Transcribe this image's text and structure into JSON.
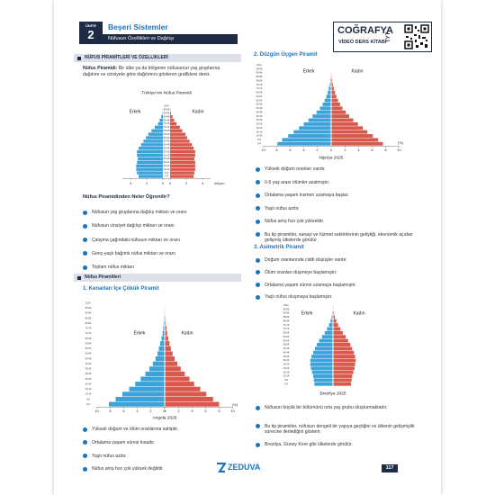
{
  "header": {
    "unit_label": "ÜNİTE",
    "unit_number": "2",
    "title": "Beşeri Sistemler",
    "subtitle": "Nüfusun Özellikleri ve Dağılışı",
    "book": {
      "subject": "COĞRAFYA",
      "level": "TYT",
      "name": "VİDEO DERS KİTABI"
    }
  },
  "left": {
    "section1_title": "NÜFUS PİRAMİTLERİ VE ÖZELLİKLERİ",
    "definition_term": "Nüfus Piramidi:",
    "definition_text": "Bir ülke ya da bölgenin nüfusunun yaş gruplarına dağılımı ve cinsiyete göre dağılımını gösteren grafiklere denir.",
    "turkey": {
      "type": "pyramid",
      "title": "Türkiye'nin Nüfus Piramidi",
      "unit_label": "milyon",
      "categories": [
        "100+",
        "95-99",
        "90-94",
        "85-89",
        "80-84",
        "75-79",
        "70-74",
        "65-69",
        "60-64",
        "55-59",
        "50-54",
        "45-49",
        "40-44",
        "35-39",
        "30-34",
        "25-29",
        "20-24",
        "15-19",
        "10-14",
        "5-9",
        "0-4"
      ],
      "series": [
        {
          "name": "Erkek",
          "color": "#3ba3d9",
          "values": [
            0.0,
            0.01,
            0.05,
            0.2,
            0.4,
            0.6,
            1.0,
            1.4,
            1.8,
            2.1,
            2.4,
            2.7,
            3.0,
            3.2,
            3.2,
            3.1,
            3.2,
            3.3,
            3.3,
            3.2,
            3.0
          ]
        },
        {
          "name": "Kadın",
          "color": "#d9594c",
          "values": [
            0.01,
            0.03,
            0.1,
            0.3,
            0.5,
            0.8,
            1.2,
            1.5,
            1.9,
            2.1,
            2.4,
            2.7,
            2.9,
            3.1,
            3.1,
            3.0,
            3.1,
            3.1,
            3.1,
            3.0,
            2.9
          ]
        }
      ],
      "xlim": [
        0,
        5
      ],
      "xticks": [
        0,
        2,
        4
      ],
      "zero_shared": false
    },
    "learn_title": "Nüfus Piramidinden Neler Öğrenilir?",
    "learn_items": [
      "Nüfusun yaş gruplarına dağılış miktarı ve oranı",
      "Nüfusun cinsiyet dağılışı miktarı ve oranı",
      "Çalışma çağındaki nüfusun miktarı ve oranı",
      "Genç-yaşlı bağımlı nüfus miktarı ve oranı",
      "Toplam nüfus miktarı"
    ],
    "section2_title": "Nüfus Piramitleri",
    "type1": {
      "title": "1. Kenarları İçe Çökük Piramit",
      "chart": {
        "type": "pyramid",
        "title": "Angola 2025",
        "unit_label": "(%)",
        "categories": [
          "100+",
          "95-99",
          "90-94",
          "85-89",
          "80-84",
          "75-79",
          "70-74",
          "65-69",
          "60-64",
          "55-59",
          "50-54",
          "45-49",
          "40-44",
          "35-39",
          "30-34",
          "25-29",
          "20-24",
          "15-19",
          "10-14",
          "5-9",
          "0-4"
        ],
        "series": [
          {
            "name": "Erkek",
            "color": "#3ba3d9",
            "values": [
              0,
              0,
              0.01,
              0.03,
              0.08,
              0.15,
              0.25,
              0.4,
              0.6,
              0.8,
              1.0,
              1.3,
              1.7,
              2.2,
              2.8,
              3.5,
              4.3,
              5.2,
              6.2,
              7.2,
              8.2
            ]
          },
          {
            "name": "Kadın",
            "color": "#d9594c",
            "values": [
              0,
              0.01,
              0.02,
              0.05,
              0.1,
              0.2,
              0.3,
              0.45,
              0.65,
              0.85,
              1.1,
              1.4,
              1.8,
              2.3,
              2.9,
              3.6,
              4.3,
              5.2,
              6.1,
              7.1,
              8.0
            ]
          }
        ],
        "xlim": [
          0,
          10
        ],
        "xticks": [
          0,
          2,
          4,
          6,
          8,
          10
        ],
        "zero_shared": false
      },
      "items": [
        "Yüksek doğum ve ölüm oranlarına sahiptir.",
        "Ortalama yaşam süresi kısadır.",
        "Yaşlı nüfus azdır.",
        "Nüfus artış hızı çok yüksek değildir."
      ]
    }
  },
  "right": {
    "type2": {
      "title": "2. Düzgün Üçgen Piramit",
      "chart": {
        "type": "pyramid",
        "title": "Nijerya 2025",
        "unit_label": "(%)",
        "categories": [
          "100+",
          "95-99",
          "90-94",
          "85-89",
          "80-84",
          "75-79",
          "70-74",
          "65-69",
          "60-64",
          "55-59",
          "50-54",
          "45-49",
          "40-44",
          "35-39",
          "30-34",
          "25-29",
          "20-24",
          "15-19",
          "10-14",
          "5-9",
          "0-4"
        ],
        "series": [
          {
            "name": "Erkek",
            "color": "#3ba3d9",
            "values": [
              0,
              0,
              0.01,
              0.03,
              0.07,
              0.15,
              0.3,
              0.45,
              0.65,
              0.9,
              1.2,
              1.6,
              2.1,
              2.7,
              3.3,
              4.0,
              4.7,
              5.5,
              6.3,
              7.2,
              7.9
            ]
          },
          {
            "name": "Kadın",
            "color": "#d9594c",
            "values": [
              0,
              0,
              0.01,
              0.04,
              0.09,
              0.18,
              0.32,
              0.5,
              0.7,
              0.95,
              1.25,
              1.6,
              2.1,
              2.6,
              3.2,
              3.9,
              4.6,
              5.3,
              6.1,
              6.9,
              7.6
            ]
          }
        ],
        "xlim": [
          0,
          10
        ],
        "xticks": [
          0,
          2,
          4,
          6,
          8,
          10
        ],
        "zero_shared": true
      },
      "items": [
        "Yüksek doğum oranları vardır.",
        "0-5 yaş arası ölümler azalmıştır.",
        "Ortalama yaşam kısmen uzamaya başlar.",
        "Yaşlı nüfus azdır.",
        "Nüfus artış hızı çok yüksektir.",
        "Bu tip piramitler, sanayi ve hizmet sektörlerinin geliştiği, ekonomik açıdan gelişmiş ülkelerde görülür."
      ]
    },
    "type3": {
      "title": "3. Asimetrik Piramit",
      "items": [
        "Doğum oranlarında ciddi düşüşler vardır.",
        "Ölüm oranları düşmeye başlamıştır.",
        "Ortalama yaşam süresi uzamaya başlamıştır.",
        "Yaşlı nüfus oluşmaya başlamıştır."
      ],
      "chart": {
        "type": "pyramid",
        "title": "Brezilya 2025",
        "categories": [
          "100+",
          "95-99",
          "90-94",
          "85-89",
          "80-84",
          "75-79",
          "70-74",
          "65-69",
          "60-64",
          "55-59",
          "50-54",
          "45-49",
          "40-44",
          "35-39",
          "30-34",
          "25-29",
          "20-24",
          "15-19",
          "10-14",
          "5-9",
          "0-4"
        ],
        "series": [
          {
            "name": "Erkek",
            "color": "#3ba3d9",
            "values": [
              0,
              0.01,
              0.05,
              0.15,
              0.35,
              0.6,
              0.95,
              1.35,
              1.8,
              2.3,
              2.7,
              3.0,
              3.3,
              3.6,
              3.8,
              3.8,
              3.7,
              3.5,
              3.3,
              3.2,
              3.1
            ]
          },
          {
            "name": "Kadın",
            "color": "#d9594c",
            "values": [
              0.01,
              0.03,
              0.1,
              0.25,
              0.5,
              0.8,
              1.2,
              1.6,
              2.1,
              2.5,
              2.9,
              3.2,
              3.5,
              3.7,
              3.8,
              3.7,
              3.6,
              3.4,
              3.2,
              3.1,
              3.0
            ]
          }
        ],
        "xlim": [
          0,
          5
        ]
      },
      "items_after": [
        "Nüfusun büyük bir bölümünü orta yaş grubu oluşturmaktadır.",
        "Bu tip piramitler, nüfusun dengeli bir yapıya geçtiğini ve ülkenin gelişmişlik sürecine ilerlediğini gösterir.",
        "Brezilya, Güney Kore gibi ülkelerde görülür."
      ]
    }
  },
  "footer": {
    "brand": "ZEDUVA",
    "page": "117"
  }
}
